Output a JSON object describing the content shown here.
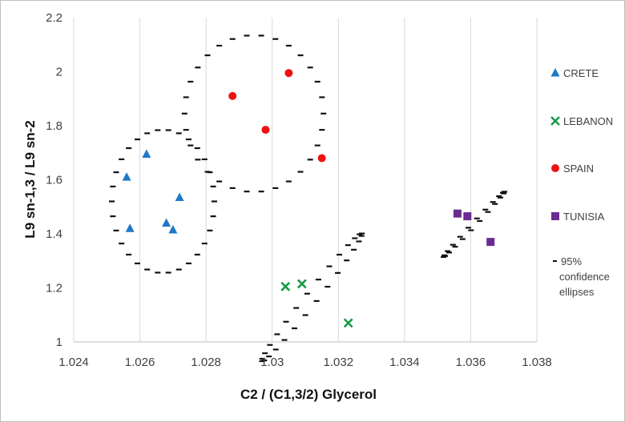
{
  "chart_data": {
    "type": "scatter",
    "xlabel": "C2 / (C1,3/2) Glycerol",
    "ylabel": "L9 sn-1,3 / L9 sn-2",
    "xlim": [
      1.024,
      1.038
    ],
    "ylim": [
      1.0,
      2.2
    ],
    "xticks": [
      "1.024",
      "1.026",
      "1.028",
      "1.03",
      "1.032",
      "1.034",
      "1.036",
      "1.038"
    ],
    "yticks": [
      "1",
      "1.2",
      "1.4",
      "1.6",
      "1.8",
      "2",
      "2.2"
    ],
    "grid": "vertical",
    "legend_position": "right",
    "series": [
      {
        "name": "CRETE",
        "marker": "triangle",
        "color": "#1f78c8",
        "points": [
          [
            1.0256,
            1.61
          ],
          [
            1.0257,
            1.42
          ],
          [
            1.0262,
            1.695
          ],
          [
            1.0268,
            1.44
          ],
          [
            1.027,
            1.415
          ],
          [
            1.0272,
            1.535
          ]
        ]
      },
      {
        "name": "LEBANON",
        "marker": "x",
        "color": "#1a9a4a",
        "points": [
          [
            1.0304,
            1.205
          ],
          [
            1.0309,
            1.215
          ],
          [
            1.0323,
            1.07
          ]
        ]
      },
      {
        "name": "SPAIN",
        "marker": "circle",
        "color": "#ee1111",
        "points": [
          [
            1.0288,
            1.91
          ],
          [
            1.0298,
            1.785
          ],
          [
            1.0305,
            1.995
          ],
          [
            1.0315,
            1.68
          ]
        ]
      },
      {
        "name": "TUNISIA",
        "marker": "square",
        "color": "#6a2c91",
        "points": [
          [
            1.0356,
            1.475
          ],
          [
            1.0359,
            1.465
          ],
          [
            1.0366,
            1.37
          ]
        ]
      }
    ],
    "ellipse_legend": "95% confidence ellipses",
    "ellipse_legend_lines": [
      "95%",
      "confidence",
      "ellipses"
    ],
    "ellipses": [
      {
        "cx": 1.0267,
        "cy": 1.52,
        "rx": 0.00155,
        "ry": 0.265,
        "angle_deg": 0,
        "count": 30
      },
      {
        "cx": 1.02945,
        "cy": 1.845,
        "rx": 0.0021,
        "ry": 0.29,
        "angle_deg": 0,
        "count": 30
      },
      {
        "cx": 1.0312,
        "cy": 1.165,
        "rx": 0.00245,
        "ry": 0.022,
        "angle_deg": -52,
        "count": 28
      },
      {
        "cx": 1.0361,
        "cy": 1.435,
        "rx": 0.00135,
        "ry": 0.007,
        "angle_deg": -47,
        "count": 22
      }
    ]
  }
}
